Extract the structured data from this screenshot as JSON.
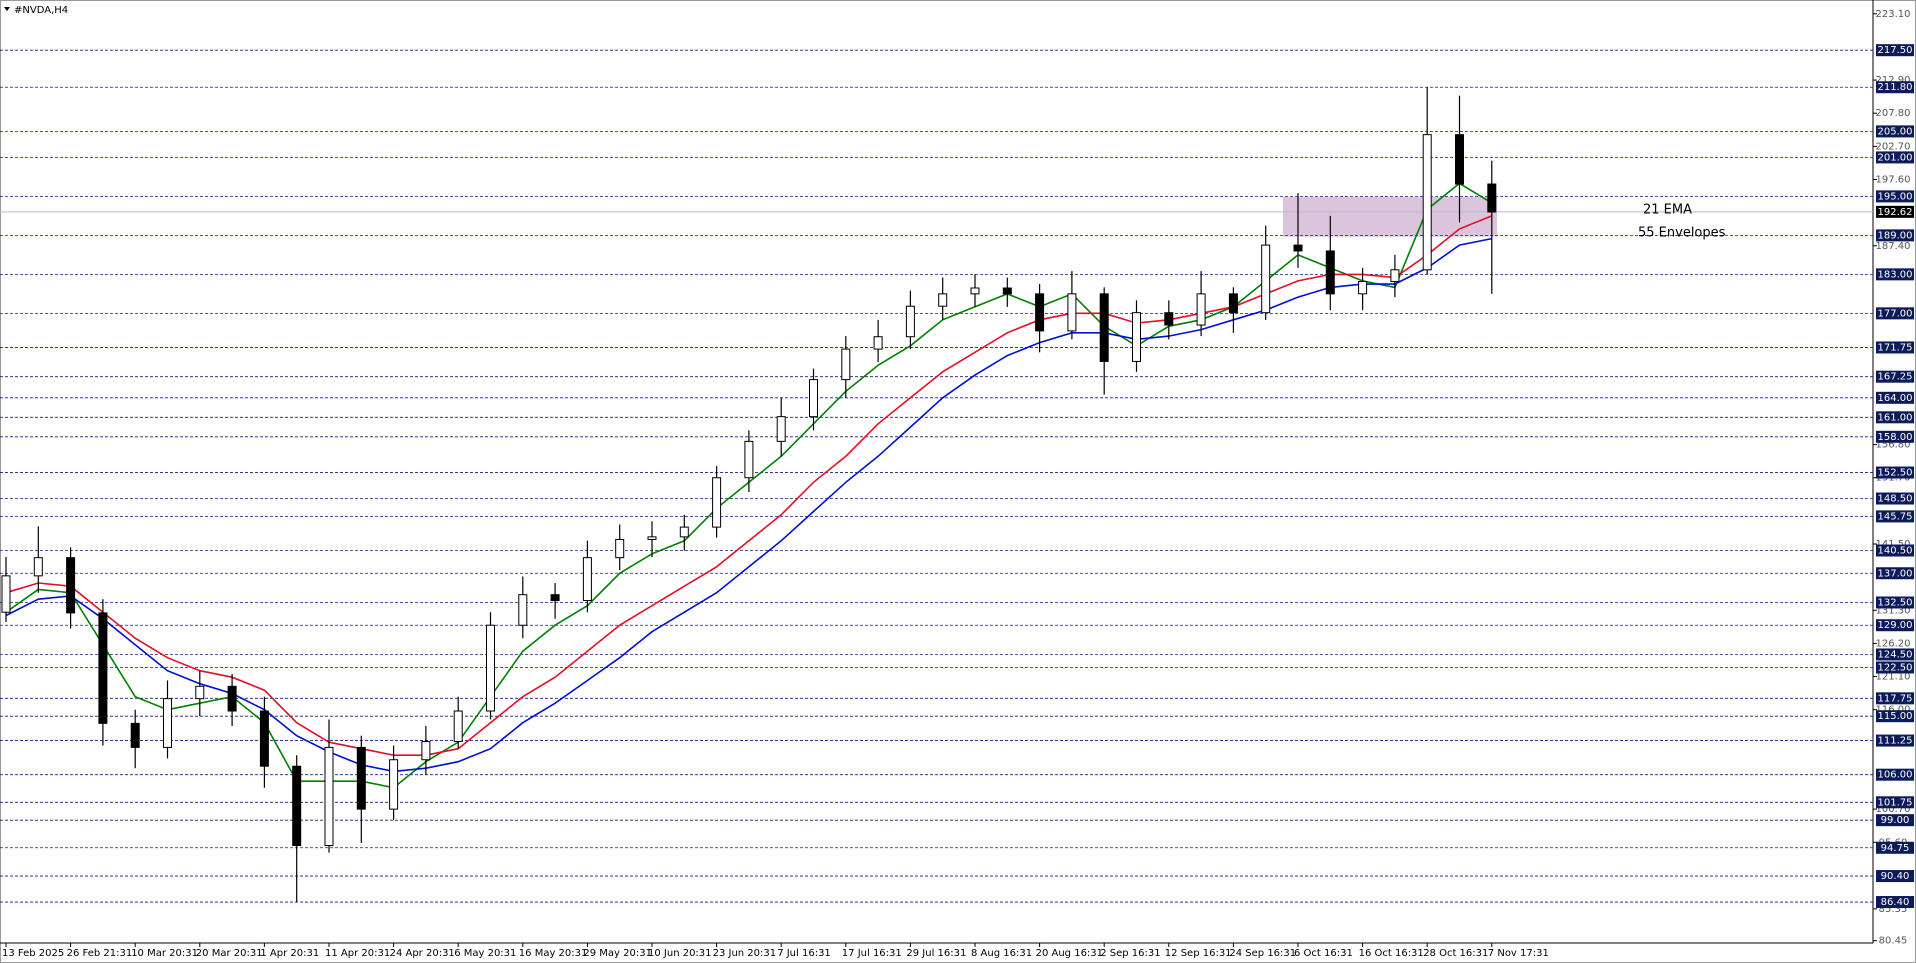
{
  "chart_data": {
    "type": "candlestick",
    "title": "#NVDA,H4",
    "categories": [
      "13 Feb 2025",
      null,
      "26 Feb 21:31",
      null,
      "10 Mar 20:31",
      null,
      "20 Mar 20:31",
      null,
      "1 Apr 20:31",
      null,
      "11 Apr 20:31",
      null,
      "24 Apr 20:31",
      null,
      "6 May 20:31",
      null,
      "16 May 20:31",
      null,
      "29 May 20:31",
      null,
      "10 Jun 20:31",
      null,
      "23 Jun 20:31",
      null,
      "7 Jul 16:31",
      null,
      "17 Jul 16:31",
      null,
      "29 Jul 16:31",
      null,
      "8 Aug 16:31",
      null,
      "20 Aug 16:31",
      null,
      "2 Sep 16:31",
      null,
      "12 Sep 16:31",
      null,
      "24 Sep 16:31",
      null,
      "6 Oct 16:31",
      null,
      "16 Oct 16:31",
      null,
      "28 Oct 16:31",
      null,
      "7 Nov 17:31"
    ],
    "open": [
      131.0,
      136.6,
      139.4,
      130.9,
      113.9,
      110.2,
      117.7,
      119.6,
      115.8,
      107.3,
      95.1,
      110.2,
      100.7,
      108.3,
      111.1,
      115.8,
      129.0,
      133.7,
      132.8,
      139.4,
      142.2,
      142.6,
      144.1,
      151.7,
      157.3,
      161.1,
      166.8,
      171.5,
      173.4,
      178.1,
      180.0,
      180.9,
      180.0,
      174.3,
      180.0,
      169.6,
      177.1,
      175.2,
      180.0,
      177.1,
      187.5,
      186.6,
      180.0,
      181.9,
      183.7,
      204.5,
      196.9
    ],
    "high": [
      139.5,
      144.2,
      141.0,
      133.0,
      116.0,
      120.5,
      122.0,
      121.5,
      118.0,
      109.0,
      114.5,
      112.0,
      110.5,
      113.5,
      118.0,
      131.0,
      136.5,
      135.5,
      142.0,
      144.5,
      145.0,
      146.0,
      153.5,
      159.0,
      164.0,
      168.5,
      173.5,
      176.0,
      180.5,
      182.5,
      183.0,
      182.5,
      181.5,
      183.5,
      181.0,
      179.0,
      179.0,
      183.5,
      181.0,
      190.5,
      195.5,
      192.0,
      184.0,
      186.0,
      211.8,
      210.5,
      200.5
    ],
    "low": [
      129.5,
      134.0,
      128.5,
      110.5,
      107.0,
      108.5,
      115.0,
      113.5,
      104.0,
      86.4,
      94.0,
      95.5,
      99.0,
      106.0,
      110.0,
      114.5,
      127.0,
      130.0,
      131.0,
      137.5,
      139.5,
      140.5,
      142.5,
      149.5,
      155.0,
      159.0,
      164.0,
      169.5,
      171.5,
      176.0,
      178.0,
      178.0,
      171.0,
      173.0,
      164.5,
      168.0,
      173.0,
      173.5,
      174.0,
      176.0,
      184.0,
      177.5,
      177.5,
      179.5,
      183.0,
      191.0,
      180.0
    ],
    "close": [
      136.6,
      139.4,
      130.9,
      113.9,
      110.2,
      117.7,
      119.6,
      115.8,
      107.3,
      95.1,
      110.2,
      100.7,
      108.3,
      111.1,
      115.8,
      129.0,
      133.7,
      132.8,
      139.4,
      142.2,
      142.6,
      144.1,
      151.7,
      157.3,
      161.1,
      166.8,
      171.5,
      173.4,
      178.1,
      180.0,
      180.9,
      180.0,
      174.3,
      180.0,
      169.6,
      177.1,
      175.2,
      180.0,
      177.1,
      187.5,
      186.6,
      180.0,
      181.9,
      183.7,
      204.5,
      196.9,
      192.6
    ],
    "series": [
      {
        "color": "#008000",
        "values": [
          131,
          134.5,
          134,
          126,
          118,
          116,
          117,
          118,
          114,
          105,
          105,
          105,
          104,
          108,
          111,
          118,
          125,
          129,
          132,
          137,
          140,
          142,
          147,
          151,
          155,
          160,
          165,
          169,
          172,
          176,
          178,
          180,
          178,
          180,
          175,
          172,
          175,
          176,
          178,
          182,
          186,
          184,
          182,
          181,
          193,
          197,
          194
        ]
      },
      {
        "color": "#e0102a",
        "values": [
          134,
          135.5,
          135,
          131,
          127,
          124,
          122,
          121,
          119,
          114,
          111,
          110,
          109,
          109,
          110,
          114,
          118,
          121,
          125,
          129,
          132,
          135,
          138,
          142,
          146,
          151,
          155,
          160,
          164,
          168,
          171,
          174,
          176,
          177,
          177,
          175.5,
          176,
          177,
          178,
          180,
          182,
          183,
          183,
          182.5,
          186,
          190,
          192
        ]
      },
      {
        "color": "#0010d0",
        "values": [
          130.5,
          133,
          133.5,
          130,
          126,
          122,
          120,
          118.5,
          116,
          112,
          109.5,
          107.5,
          106.5,
          107,
          108,
          110,
          114,
          117,
          120.5,
          124,
          128,
          131,
          134,
          138,
          142,
          146.5,
          151,
          155,
          159.5,
          164,
          167.5,
          170.5,
          172.5,
          174,
          174,
          173,
          173.5,
          174.5,
          176,
          177.5,
          179.5,
          181,
          181.5,
          181.5,
          184,
          187.5,
          188.5
        ]
      }
    ],
    "ylim": [
      80.45,
      223.1
    ],
    "yticks": [
      {
        "value": 223.1,
        "label": "223.10"
      },
      {
        "value": 212.9,
        "label": "212.90"
      },
      {
        "value": 207.8,
        "label": "207.80"
      },
      {
        "value": 202.7,
        "label": "202.70"
      },
      {
        "value": 197.6,
        "label": "197.60"
      },
      {
        "value": 187.4,
        "label": "187.40"
      },
      {
        "value": 156.8,
        "label": "156.80"
      },
      {
        "value": 151.7,
        "label": "151.70"
      },
      {
        "value": 141.5,
        "label": "141.50"
      },
      {
        "value": 131.3,
        "label": "131.30"
      },
      {
        "value": 126.2,
        "label": "126.20"
      },
      {
        "value": 121.1,
        "label": "121.10"
      },
      {
        "value": 116,
        "label": "116.00"
      },
      {
        "value": 100.7,
        "label": "100.70"
      },
      {
        "value": 95.6,
        "label": "95.60"
      },
      {
        "value": 85.35,
        "label": "85.35"
      },
      {
        "value": 80.45,
        "label": "80.45"
      }
    ],
    "levels": [
      {
        "value": 217.5,
        "label": "217.50"
      },
      {
        "value": 211.8,
        "label": "211.80"
      },
      {
        "value": 205,
        "label": "205.00"
      },
      {
        "value": 201,
        "label": "201.00"
      },
      {
        "value": 195,
        "label": "195.00"
      },
      {
        "value": 189,
        "label": "189.00"
      },
      {
        "value": 183,
        "label": "183.00"
      },
      {
        "value": 177,
        "label": "177.00"
      },
      {
        "value": 171.75,
        "label": "171.75"
      },
      {
        "value": 167.25,
        "label": "167.25"
      },
      {
        "value": 164,
        "label": "164.00"
      },
      {
        "value": 161,
        "label": "161.00"
      },
      {
        "value": 158,
        "label": "158.00"
      },
      {
        "value": 152.5,
        "label": "152.50"
      },
      {
        "value": 148.5,
        "label": "148.50"
      },
      {
        "value": 145.75,
        "label": "145.75"
      },
      {
        "value": 140.5,
        "label": "140.50"
      },
      {
        "value": 137,
        "label": "137.00"
      },
      {
        "value": 132.5,
        "label": "132.50"
      },
      {
        "value": 129,
        "label": "129.00"
      },
      {
        "value": 124.5,
        "label": "124.50"
      },
      {
        "value": 122.5,
        "label": "122.50"
      },
      {
        "value": 117.75,
        "label": "117.75"
      },
      {
        "value": 115,
        "label": "115.00"
      },
      {
        "value": 111.25,
        "label": "111.25"
      },
      {
        "value": 106,
        "label": "106.00"
      },
      {
        "value": 101.75,
        "label": "101.75"
      },
      {
        "value": 99,
        "label": "99.00"
      },
      {
        "value": 94.75,
        "label": "94.75"
      },
      {
        "value": 90.4,
        "label": "90.40"
      },
      {
        "value": 86.4,
        "label": "86.40"
      }
    ],
    "price": {
      "value": 192.62,
      "label": "192.62"
    },
    "zone": [
      188.8,
      194.9
    ],
    "annotations": [
      {
        "text": "21 EMA",
        "color": "#2e8b22"
      },
      {
        "text": "55 Envelopes",
        "color": "#2020c8"
      }
    ]
  }
}
